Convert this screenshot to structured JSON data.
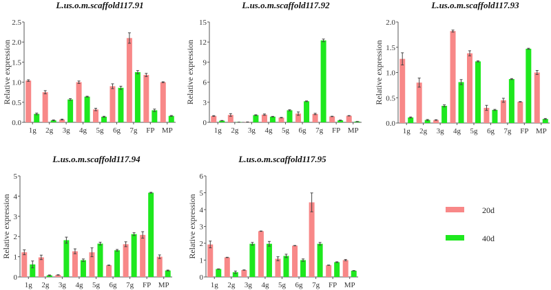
{
  "figure": {
    "colors": {
      "20d": "#f88888",
      "40d": "#1ee81e",
      "axis": "#555555",
      "error": "#444444"
    },
    "legend": {
      "placement": "bottom-right",
      "entries": [
        {
          "label": "20d",
          "series": "20d"
        },
        {
          "label": "40d",
          "series": "40d"
        }
      ]
    }
  },
  "chart_data": [
    {
      "type": "bar",
      "title": "L.us.o.m.scaffold117.91",
      "xlabel": "",
      "ylabel": "Relative expression",
      "ylim": [
        0,
        2.5
      ],
      "yticks": [
        0.0,
        0.5,
        1.0,
        1.5,
        2.0,
        2.5
      ],
      "ytick_labels": [
        "0.0",
        "0.5",
        "1.0",
        "1.5",
        "2.0",
        "2.5"
      ],
      "categories": [
        "1g",
        "2g",
        "3g",
        "4g",
        "5g",
        "6g",
        "7g",
        "FP",
        "MP"
      ],
      "series": [
        {
          "name": "20d",
          "values": [
            1.04,
            0.75,
            0.07,
            1.0,
            0.32,
            0.9,
            2.1,
            1.18,
            1.0
          ],
          "errors": [
            0.02,
            0.04,
            0.01,
            0.03,
            0.03,
            0.06,
            0.13,
            0.04,
            0.01
          ]
        },
        {
          "name": "40d",
          "values": [
            0.21,
            0.05,
            0.57,
            0.64,
            0.14,
            0.86,
            1.25,
            0.3,
            0.16
          ],
          "errors": [
            0.02,
            0.01,
            0.02,
            0.01,
            0.01,
            0.04,
            0.04,
            0.03,
            0.01
          ]
        }
      ]
    },
    {
      "type": "bar",
      "title": "L.us.o.m.scaffold117.92",
      "xlabel": "",
      "ylabel": "Relative expression",
      "ylim": [
        0,
        15
      ],
      "yticks": [
        0,
        3,
        6,
        9,
        12,
        15
      ],
      "ytick_labels": [
        "0",
        "3",
        "6",
        "9",
        "12",
        "15"
      ],
      "categories": [
        "1g",
        "2g",
        "3g",
        "4g",
        "5g",
        "6g",
        "7g",
        "FP",
        "MP"
      ],
      "series": [
        {
          "name": "20d",
          "values": [
            0.95,
            1.1,
            0.05,
            1.15,
            0.7,
            1.3,
            1.25,
            0.88,
            0.98
          ],
          "errors": [
            0.05,
            0.2,
            0.01,
            0.1,
            0.04,
            0.25,
            0.1,
            0.03,
            0.03
          ]
        },
        {
          "name": "40d",
          "values": [
            0.25,
            0.02,
            1.08,
            0.85,
            1.8,
            3.15,
            12.25,
            0.3,
            0.12
          ],
          "errors": [
            0.03,
            0.01,
            0.05,
            0.04,
            0.08,
            0.05,
            0.2,
            0.04,
            0.02
          ]
        }
      ]
    },
    {
      "type": "bar",
      "title": "L.us.o.m.scaffold117.93",
      "xlabel": "",
      "ylabel": "Relative expression",
      "ylim": [
        0,
        2.0
      ],
      "yticks": [
        0.0,
        0.5,
        1.0,
        1.5,
        2.0
      ],
      "ytick_labels": [
        "0.0",
        "0.5",
        "1.0",
        "1.5",
        "2.0"
      ],
      "categories": [
        "1g",
        "2g",
        "3g",
        "4g",
        "5g",
        "6g",
        "7g",
        "FP",
        "MP"
      ],
      "series": [
        {
          "name": "20d",
          "values": [
            1.27,
            0.8,
            0.06,
            1.82,
            1.38,
            0.3,
            0.45,
            0.42,
            1.0
          ],
          "errors": [
            0.12,
            0.09,
            0.005,
            0.02,
            0.05,
            0.05,
            0.04,
            0.005,
            0.04
          ]
        },
        {
          "name": "40d",
          "values": [
            0.11,
            0.06,
            0.34,
            0.81,
            1.22,
            0.26,
            0.87,
            1.47,
            0.08
          ],
          "errors": [
            0.01,
            0.01,
            0.02,
            0.05,
            0.01,
            0.01,
            0.01,
            0.01,
            0.01
          ]
        }
      ]
    },
    {
      "type": "bar",
      "title": "L.us.o.m.scaffold117.94",
      "xlabel": "",
      "ylabel": "Relative expression",
      "ylim": [
        0,
        5
      ],
      "yticks": [
        0,
        1,
        2,
        3,
        4,
        5
      ],
      "ytick_labels": [
        "0",
        "1",
        "2",
        "3",
        "4",
        "5"
      ],
      "categories": [
        "1g",
        "2g",
        "3g",
        "4g",
        "5g",
        "6g",
        "7g",
        "FP",
        "MP"
      ],
      "series": [
        {
          "name": "20d",
          "values": [
            1.22,
            0.97,
            0.1,
            1.27,
            1.22,
            0.58,
            1.62,
            2.08,
            1.0
          ],
          "errors": [
            0.12,
            0.11,
            0.01,
            0.12,
            0.22,
            0.01,
            0.12,
            0.16,
            0.09
          ]
        },
        {
          "name": "40d",
          "values": [
            0.62,
            0.08,
            1.82,
            0.83,
            1.65,
            1.32,
            2.12,
            4.17,
            0.32
          ],
          "errors": [
            0.17,
            0.02,
            0.15,
            0.06,
            0.07,
            0.04,
            0.07,
            0.02,
            0.02
          ]
        }
      ]
    },
    {
      "type": "bar",
      "title": "L.us.o.m.scaffold117.95",
      "xlabel": "",
      "ylabel": "Relative expression",
      "ylim": [
        0,
        6
      ],
      "yticks": [
        0,
        1,
        2,
        3,
        4,
        5,
        6
      ],
      "ytick_labels": [
        "0",
        "1",
        "2",
        "3",
        "4",
        "5",
        "6"
      ],
      "categories": [
        "1g",
        "2g",
        "3g",
        "4g",
        "5g",
        "6g",
        "7g",
        "FP",
        "MP"
      ],
      "series": [
        {
          "name": "20d",
          "values": [
            1.93,
            1.16,
            0.41,
            2.72,
            1.08,
            1.86,
            4.43,
            0.7,
            1.0
          ],
          "errors": [
            0.2,
            0.01,
            0.01,
            0.01,
            0.12,
            0.01,
            0.56,
            0.01,
            0.04
          ]
        },
        {
          "name": "40d",
          "values": [
            0.47,
            0.28,
            1.97,
            1.97,
            1.25,
            1.0,
            1.97,
            0.88,
            0.37
          ],
          "errors": [
            0.01,
            0.07,
            0.08,
            0.14,
            0.1,
            0.07,
            0.08,
            0.02,
            0.01
          ]
        }
      ]
    }
  ]
}
